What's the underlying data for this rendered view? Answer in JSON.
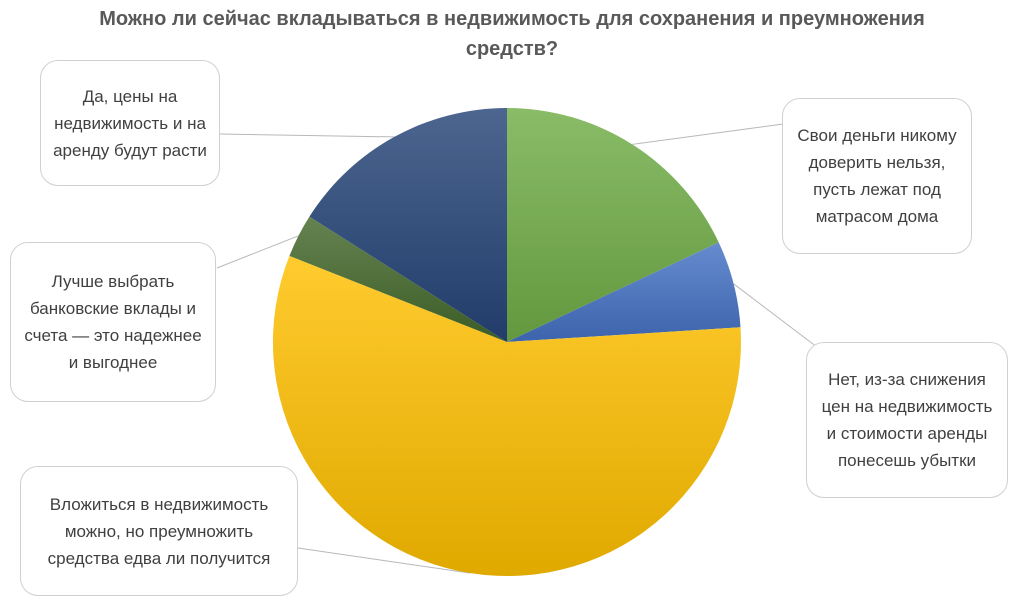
{
  "chart_data": {
    "type": "pie",
    "title": "Можно ли сейчас вкладываться в недвижимость для сохранения и преумножения средств?",
    "slices": [
      {
        "label": "Свои деньги никому доверить нельзя, пусть лежат под матрасом дома",
        "value": 18,
        "color": "#70ad47"
      },
      {
        "label": "Нет, из-за снижения цен на недвижимость и стоимости аренды понесешь убытки",
        "value": 6,
        "color": "#4472c4"
      },
      {
        "label": "Вложиться в недвижимость можно, но преумножить средства едва ли получится",
        "value": 57,
        "color": "#ffc000"
      },
      {
        "label": "Лучше выбрать банковские вклады и счета — это надежнее и выгоднее",
        "value": 3,
        "color": "#43682b"
      },
      {
        "label": "Да, цены на недвижимость и на аренду будут расти",
        "value": 16,
        "color": "#264478"
      }
    ],
    "legend": "none",
    "data_labels": "callouts"
  }
}
